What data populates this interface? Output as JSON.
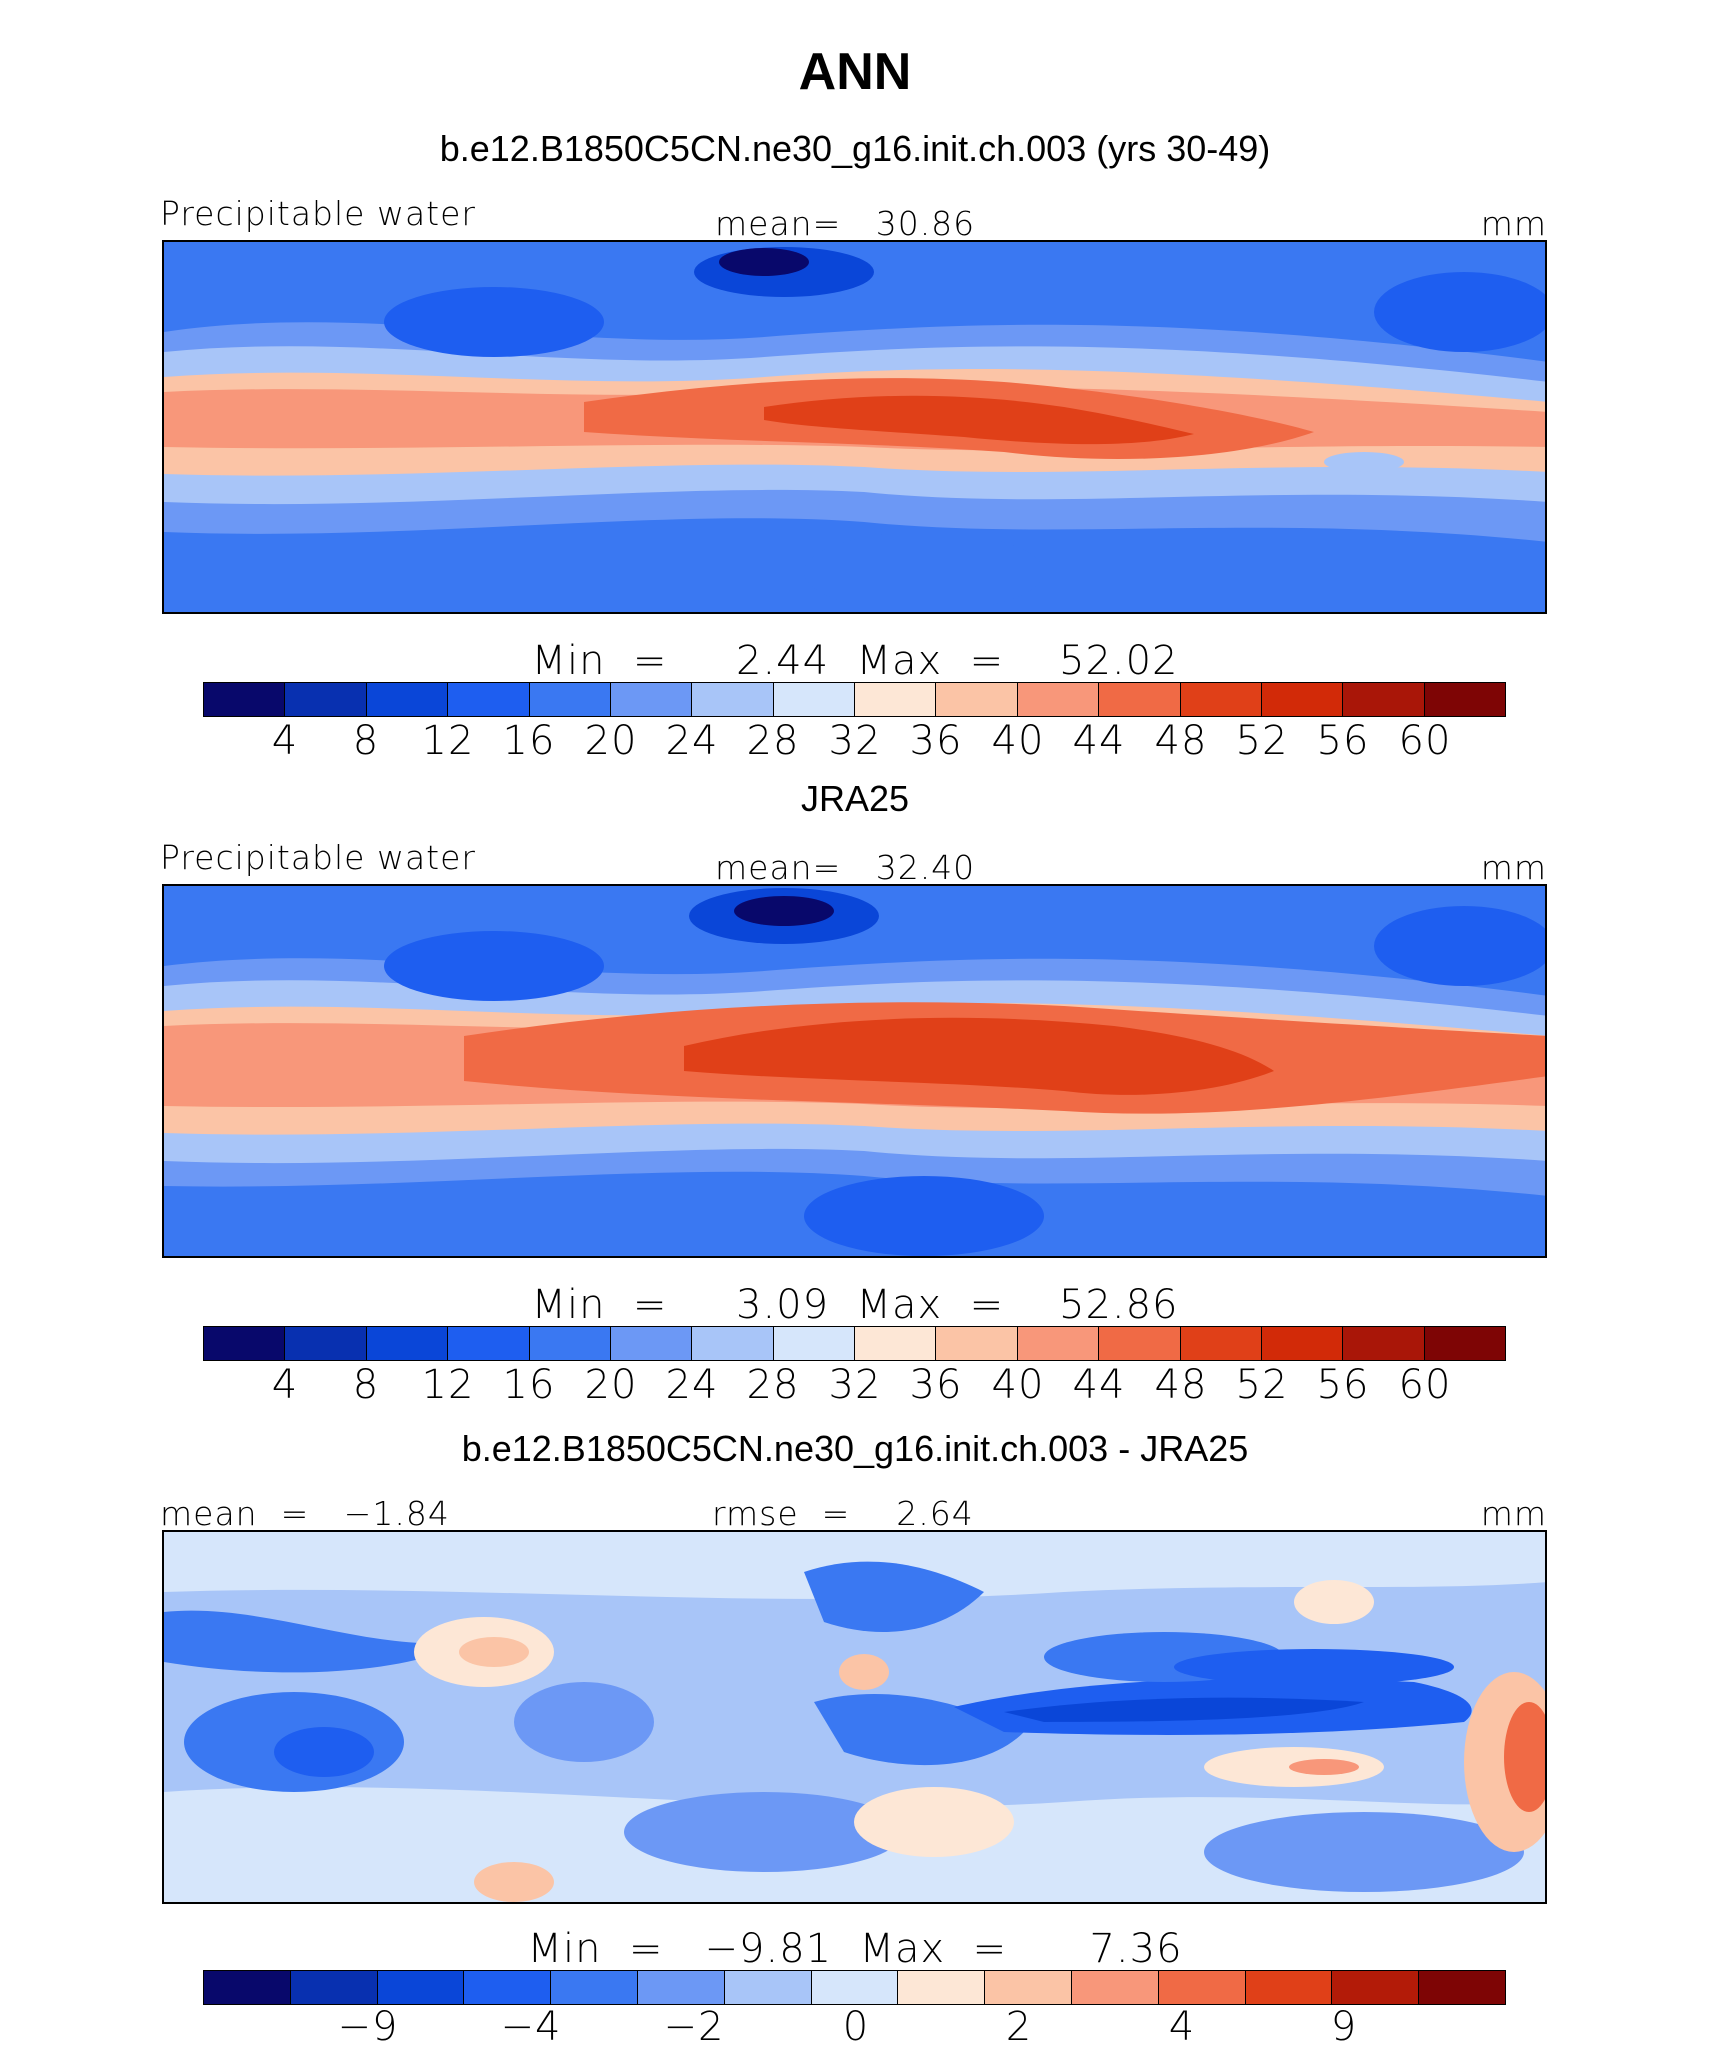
{
  "figure": {
    "title": "ANN",
    "colors_main": [
      "#08086b",
      "#0830b0",
      "#0a46d8",
      "#1e5ef0",
      "#3a78f2",
      "#6c98f5",
      "#a8c5f8",
      "#d6e6fb",
      "#fde7d6",
      "#fbc4a6",
      "#f8977a",
      "#f06a45",
      "#e04018",
      "#d22a08",
      "#a91608",
      "#7e0505"
    ],
    "colors_diff": [
      "#08086b",
      "#0830b0",
      "#0a46d8",
      "#1e5ef0",
      "#3a78f2",
      "#6c98f5",
      "#a8c5f8",
      "#d6e6fb",
      "#fde7d6",
      "#fbc4a6",
      "#f8977a",
      "#f06a45",
      "#e04018",
      "#b31b08",
      "#7e0505"
    ]
  },
  "chart_data": [
    {
      "type": "heatmap",
      "title": "b.e12.B1850C5CN.ne30_g16.init.ch.003 (yrs 30-49)",
      "left_label": "Precipitable water",
      "center_label": "mean=   30.86",
      "units": "mm",
      "minmax": "Min  =     2.44  Max  =    52.02",
      "colorbar_ticks": [
        "4",
        "8",
        "12",
        "16",
        "20",
        "24",
        "28",
        "32",
        "36",
        "40",
        "44",
        "48",
        "52",
        "56",
        "60"
      ],
      "stats": {
        "mean": 30.86,
        "min": 2.44,
        "max": 52.02
      }
    },
    {
      "type": "heatmap",
      "title": "JRA25",
      "left_label": "Precipitable water",
      "center_label": "mean=   32.40",
      "units": "mm",
      "minmax": "Min  =     3.09  Max  =    52.86",
      "colorbar_ticks": [
        "4",
        "8",
        "12",
        "16",
        "20",
        "24",
        "28",
        "32",
        "36",
        "40",
        "44",
        "48",
        "52",
        "56",
        "60"
      ],
      "stats": {
        "mean": 32.4,
        "min": 3.09,
        "max": 52.86
      }
    },
    {
      "type": "heatmap",
      "title": "b.e12.B1850C5CN.ne30_g16.init.ch.003 - JRA25",
      "left_label": "mean  =   −1.84",
      "center_label": "rmse  =    2.64",
      "units": "mm",
      "minmax": "Min  =   −9.81  Max  =      7.36",
      "colorbar_ticks": [
        "−9",
        "−4",
        "−2",
        "0",
        "2",
        "4",
        "9"
      ],
      "stats": {
        "mean": -1.84,
        "rmse": 2.64,
        "min": -9.81,
        "max": 7.36
      }
    }
  ]
}
